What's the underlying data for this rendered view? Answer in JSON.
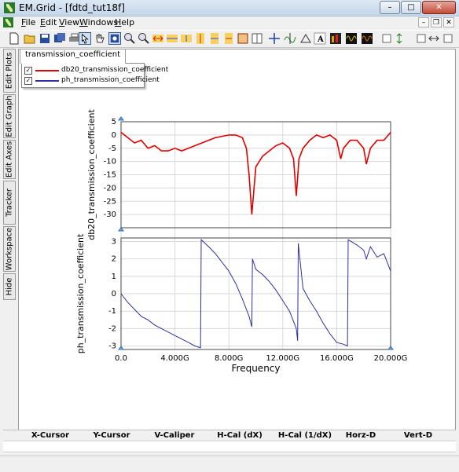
{
  "window": {
    "title": "EM.Grid - [fdtd_tut18f]",
    "minimize": "–",
    "maximize": "□",
    "close": "✕"
  },
  "menu": {
    "file": "File",
    "edit": "Edit",
    "view": "View",
    "windows": "Windows",
    "help": "Help"
  },
  "mdi": {
    "min": "–",
    "restore": "❐",
    "close": "✕"
  },
  "side_tabs": [
    "Edit Plots",
    "Edit Graph",
    "Edit Axes",
    "Tracker",
    "Workspace",
    "Hide"
  ],
  "doc_tab": "transmission_coefficient",
  "legend": [
    {
      "label": "db20_transmission_coefficient",
      "color": "#e00000",
      "checked": "✓"
    },
    {
      "label": "ph_transmission_coefficient",
      "color": "#3030a0",
      "checked": "✓"
    }
  ],
  "chart_data": [
    {
      "type": "line",
      "ylabel": "db20_transmission_coefficient",
      "ylim": [
        -35,
        5
      ],
      "yticks": [
        "5",
        "0",
        "-5",
        "-10",
        "-15",
        "-20",
        "-25",
        "-30"
      ],
      "grid": "on",
      "series": [
        {
          "name": "db20_transmission_coefficient",
          "color": "#e00000",
          "x": [
            0,
            0.5,
            1.0,
            1.5,
            2.0,
            2.5,
            3.0,
            3.5,
            4.0,
            4.5,
            5.0,
            5.5,
            6.0,
            6.5,
            7.0,
            7.5,
            8.0,
            8.5,
            9.0,
            9.3,
            9.5,
            9.7,
            10.0,
            10.5,
            11.0,
            11.5,
            12.0,
            12.5,
            12.8,
            13.0,
            13.2,
            13.5,
            14.0,
            14.5,
            15.0,
            15.5,
            16.0,
            16.3,
            16.5,
            17.0,
            17.5,
            18.0,
            18.2,
            18.5,
            19.0,
            19.5,
            20.0
          ],
          "y": [
            1,
            -1,
            -3,
            -2,
            -5,
            -4,
            -6,
            -6,
            -5,
            -6,
            -5,
            -4,
            -3,
            -2,
            -1,
            -0.5,
            0,
            0,
            -1,
            -5,
            -15,
            -30,
            -12,
            -8,
            -6,
            -4,
            -3,
            -5,
            -9,
            -23,
            -9,
            -5,
            -2,
            0,
            -1,
            0,
            -2,
            -9,
            -5,
            -2,
            -2,
            -5,
            -11,
            -5,
            -2,
            -2,
            1
          ]
        }
      ]
    },
    {
      "type": "line",
      "ylabel": "ph_transmission_coefficient",
      "xlabel": "Frequency",
      "ylim": [
        -3.2,
        3.2
      ],
      "yticks": [
        "3",
        "2",
        "1",
        "0",
        "-1",
        "-2",
        "-3"
      ],
      "xticks": [
        "0.0",
        "4.000G",
        "8.000G",
        "12.000G",
        "16.000G",
        "20.000G"
      ],
      "xlim": [
        0,
        20
      ],
      "grid": "on",
      "series": [
        {
          "name": "ph_transmission_coefficient",
          "color": "#3030a0",
          "x": [
            0,
            0.5,
            1.0,
            1.5,
            2.0,
            2.5,
            3.0,
            3.5,
            4.0,
            4.5,
            5.0,
            5.5,
            5.9,
            5.95,
            6.5,
            7.0,
            7.5,
            8.0,
            8.5,
            9.0,
            9.5,
            9.7,
            9.75,
            10.0,
            10.5,
            11.0,
            11.5,
            12.0,
            12.5,
            13.0,
            13.1,
            13.15,
            13.5,
            14.0,
            14.5,
            15.0,
            15.5,
            16.0,
            16.5,
            16.8,
            16.85,
            17.5,
            18.0,
            18.2,
            18.5,
            19.0,
            19.5,
            20.0
          ],
          "y": [
            0,
            -0.5,
            -0.9,
            -1.3,
            -1.5,
            -1.8,
            -2.0,
            -2.2,
            -2.4,
            -2.6,
            -2.8,
            -3.0,
            -3.1,
            3.1,
            2.7,
            2.3,
            1.8,
            1.3,
            0.6,
            -0.3,
            -1.3,
            -1.9,
            2.0,
            1.4,
            1.1,
            0.7,
            0.2,
            -0.4,
            -1.0,
            -2.0,
            -2.7,
            2.9,
            0.3,
            -0.4,
            -1.0,
            -1.7,
            -2.3,
            -2.8,
            -2.9,
            -3.0,
            3.1,
            2.8,
            2.5,
            2.0,
            2.7,
            2.1,
            2.3,
            1.3
          ]
        }
      ]
    }
  ],
  "table_headers": [
    "X-Cursor",
    "Y-Cursor",
    "V-Caliper",
    "H-Cal (dX)",
    "H-Cal (1/dX)",
    "Horz-D",
    "Vert-D"
  ]
}
